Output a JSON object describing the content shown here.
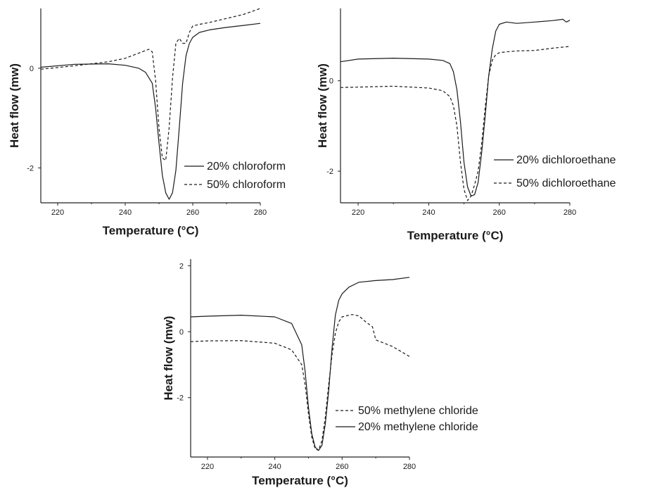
{
  "chart_data": [
    {
      "type": "line",
      "title": "",
      "xlabel": "Temperature (°C)",
      "ylabel": "Heat flow (mw)",
      "xlim": [
        215,
        280
      ],
      "ylim": [
        -2.7,
        1.2
      ],
      "xticks": [
        220,
        240,
        260,
        280
      ],
      "xtick_labels": [
        "220",
        "240",
        "260",
        "280"
      ],
      "yticks": [
        0,
        -2
      ],
      "ytick_labels": [
        "0",
        "-2"
      ],
      "grid": false,
      "legend_position": "bottom-right",
      "series": [
        {
          "name": "20% chloroform",
          "style": "solid",
          "x": [
            215,
            225,
            235,
            240,
            244,
            246,
            248,
            249,
            250,
            251,
            252,
            253,
            254,
            255,
            256,
            257,
            258,
            259,
            260,
            262,
            265,
            270,
            275,
            280
          ],
          "y": [
            0.02,
            0.08,
            0.09,
            0.06,
            0.0,
            -0.08,
            -0.3,
            -0.8,
            -1.5,
            -2.15,
            -2.5,
            -2.63,
            -2.5,
            -2.05,
            -1.2,
            -0.3,
            0.25,
            0.5,
            0.62,
            0.72,
            0.77,
            0.82,
            0.86,
            0.9
          ]
        },
        {
          "name": "50% chloroform",
          "style": "dashed",
          "x": [
            215,
            225,
            235,
            240,
            245,
            247,
            248,
            249,
            250,
            251,
            252,
            253,
            254,
            255,
            256,
            257,
            258,
            259,
            260,
            262,
            265,
            270,
            275,
            280
          ],
          "y": [
            -0.02,
            0.05,
            0.13,
            0.2,
            0.33,
            0.38,
            0.33,
            -0.25,
            -1.2,
            -1.8,
            -1.85,
            -1.2,
            -0.2,
            0.5,
            0.6,
            0.5,
            0.5,
            0.72,
            0.85,
            0.88,
            0.92,
            1.0,
            1.08,
            1.2
          ]
        }
      ]
    },
    {
      "type": "line",
      "title": "",
      "xlabel": "Temperature (°C)",
      "ylabel": "Heat flow (mw)",
      "xlim": [
        215,
        280
      ],
      "ylim": [
        -2.7,
        1.6
      ],
      "xticks": [
        220,
        240,
        260,
        280
      ],
      "xtick_labels": [
        "220",
        "240",
        "260",
        "280"
      ],
      "yticks": [
        0,
        -2
      ],
      "ytick_labels": [
        "0",
        "-2"
      ],
      "grid": false,
      "legend_position": "bottom-right",
      "series": [
        {
          "name": "20% dichloroethane",
          "style": "solid",
          "x": [
            215,
            220,
            230,
            240,
            244,
            246,
            247,
            248,
            249,
            250,
            251,
            252,
            253,
            254,
            255,
            256,
            257,
            258,
            259,
            260,
            262,
            265,
            270,
            275,
            278,
            279,
            280
          ],
          "y": [
            0.42,
            0.48,
            0.5,
            0.48,
            0.45,
            0.38,
            0.2,
            -0.2,
            -0.9,
            -1.8,
            -2.35,
            -2.55,
            -2.52,
            -2.25,
            -1.6,
            -0.8,
            0.1,
            0.7,
            1.1,
            1.25,
            1.3,
            1.27,
            1.3,
            1.33,
            1.36,
            1.3,
            1.34
          ]
        },
        {
          "name": "50% dichloroethane",
          "style": "dashed",
          "x": [
            215,
            220,
            230,
            240,
            244,
            246,
            247,
            248,
            249,
            250,
            251,
            252,
            253,
            254,
            255,
            256,
            257,
            258,
            259,
            260,
            262,
            265,
            270,
            275,
            280
          ],
          "y": [
            -0.15,
            -0.14,
            -0.12,
            -0.16,
            -0.22,
            -0.35,
            -0.55,
            -1.0,
            -1.8,
            -2.4,
            -2.65,
            -2.55,
            -2.3,
            -2.0,
            -1.4,
            -0.6,
            0.1,
            0.45,
            0.58,
            0.62,
            0.64,
            0.66,
            0.67,
            0.72,
            0.76
          ]
        }
      ]
    },
    {
      "type": "line",
      "title": "",
      "xlabel": "Temperature (°C)",
      "ylabel": "Heat flow (mw)",
      "xlim": [
        215,
        280
      ],
      "ylim": [
        -3.8,
        2.2
      ],
      "xticks": [
        220,
        240,
        260,
        280
      ],
      "xtick_labels": [
        "220",
        "240",
        "260",
        "280"
      ],
      "yticks": [
        2,
        0,
        -2
      ],
      "ytick_labels": [
        "2",
        "0",
        "-2"
      ],
      "grid": false,
      "legend_position": "bottom-right",
      "series": [
        {
          "name": "50% methylene chloride",
          "style": "dashed",
          "x": [
            215,
            220,
            230,
            240,
            245,
            248,
            249,
            250,
            251,
            252,
            253,
            254,
            255,
            256,
            257,
            258,
            259,
            260,
            262,
            263,
            265,
            267,
            269,
            270,
            275,
            280
          ],
          "y": [
            -0.3,
            -0.28,
            -0.27,
            -0.35,
            -0.55,
            -1.0,
            -1.6,
            -2.5,
            -3.2,
            -3.55,
            -3.6,
            -3.3,
            -2.6,
            -1.6,
            -0.7,
            -0.05,
            0.3,
            0.45,
            0.5,
            0.52,
            0.48,
            0.3,
            0.15,
            -0.25,
            -0.45,
            -0.75
          ]
        },
        {
          "name": "20% methylene chloride",
          "style": "solid",
          "x": [
            215,
            220,
            230,
            240,
            245,
            248,
            249,
            250,
            251,
            252,
            253,
            254,
            255,
            256,
            257,
            258,
            259,
            260,
            262,
            265,
            270,
            275,
            280
          ],
          "y": [
            0.45,
            0.47,
            0.5,
            0.45,
            0.25,
            -0.4,
            -1.2,
            -2.3,
            -3.1,
            -3.5,
            -3.6,
            -3.45,
            -2.8,
            -1.8,
            -0.5,
            0.5,
            0.95,
            1.15,
            1.35,
            1.5,
            1.55,
            1.58,
            1.65
          ]
        }
      ]
    }
  ]
}
